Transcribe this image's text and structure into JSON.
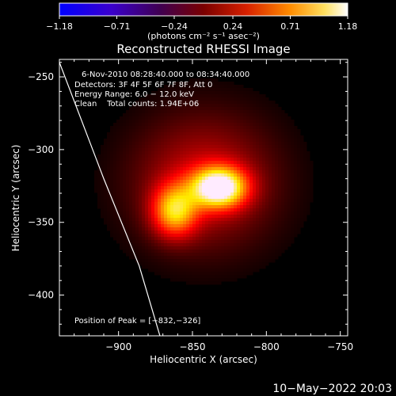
{
  "chart_data": {
    "type": "heatmap",
    "title": "Reconstructed RHESSI Image",
    "xlabel": "Heliocentric X (arcsec)",
    "ylabel": "Heliocentric Y (arcsec)",
    "xlim": [
      -940,
      -745
    ],
    "ylim": [
      -428,
      -238
    ],
    "x_ticks": [
      -900,
      -850,
      -800,
      -750
    ],
    "y_ticks": [
      -250,
      -300,
      -350,
      -400
    ],
    "x_tick_labels": [
      "−900",
      "−850",
      "−800",
      "−750"
    ],
    "y_tick_labels": [
      "−250",
      "−300",
      "−350",
      "−400"
    ],
    "colorbar": {
      "label": "(photons cm⁻² s⁻¹ asec⁻²)",
      "range": [
        -1.18,
        1.18
      ],
      "ticks": [
        -1.18,
        -0.71,
        -0.24,
        0.24,
        0.71,
        1.18
      ],
      "tick_labels": [
        "−1.18",
        "−0.71",
        "−0.24",
        "0.24",
        "0.71",
        "1.18"
      ]
    },
    "sources": [
      {
        "x": -832,
        "y": -326,
        "peak": 1.18
      },
      {
        "x": -862,
        "y": -342,
        "peak": 0.8
      }
    ],
    "limb_curve": [
      [
        -940,
        -240
      ],
      [
        -910,
        -320
      ],
      [
        -886,
        -380
      ],
      [
        -872,
        -428
      ]
    ],
    "info_lines": [
      "6-Nov-2010 08:28:40.000 to 08:34:40.000",
      "Detectors: 3F 4F 5F 6F 7F 8F, Att 0",
      "Energy Range: 6.0 − 12.0 keV",
      "Clean    Total counts: 1.94E+06"
    ],
    "peak_label": "Position of Peak = [−832,−326]",
    "timestamp": "10−May−2022 20:03"
  }
}
